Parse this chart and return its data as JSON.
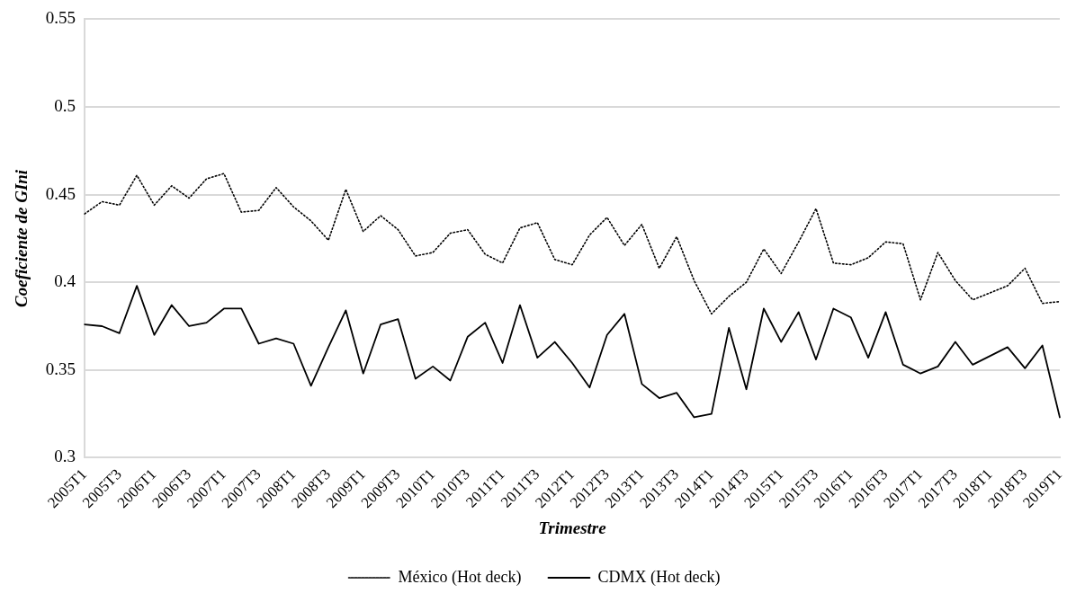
{
  "chart_data": {
    "type": "line",
    "xlabel": "Trimestre",
    "ylabel": "Coeficiente de GIni",
    "categories": [
      "2005T1",
      null,
      "2005T3",
      null,
      "2006T1",
      null,
      "2006T3",
      null,
      "2007T1",
      null,
      "2007T3",
      null,
      "2008T1",
      null,
      "2008T3",
      null,
      "2009T1",
      null,
      "2009T3",
      null,
      "2010T1",
      null,
      "2010T3",
      null,
      "2011T1",
      null,
      "2011T3",
      null,
      "2012T1",
      null,
      "2012T3",
      null,
      "2013T1",
      null,
      "2013T3",
      null,
      "2014T1",
      null,
      "2014T3",
      null,
      "2015T1",
      null,
      "2015T3",
      null,
      "2016T1",
      null,
      "2016T3",
      null,
      "2017T1",
      null,
      "2017T3",
      null,
      "2018T1",
      null,
      "2018T3",
      null,
      "2019T1"
    ],
    "series": [
      {
        "name": "México (Hot deck)",
        "color": "#000000",
        "line_style": "dotted",
        "values": [
          0.439,
          0.446,
          0.444,
          0.461,
          0.444,
          0.455,
          0.448,
          0.459,
          0.462,
          0.44,
          0.441,
          0.454,
          0.443,
          0.435,
          0.424,
          0.453,
          0.429,
          0.438,
          0.43,
          0.415,
          0.417,
          0.428,
          0.43,
          0.416,
          0.411,
          0.431,
          0.434,
          0.413,
          0.41,
          0.427,
          0.437,
          0.421,
          0.433,
          0.408,
          0.426,
          0.401,
          0.382,
          0.392,
          0.4,
          0.419,
          0.405,
          0.423,
          0.442,
          0.411,
          0.41,
          0.414,
          0.423,
          0.422,
          0.39,
          0.417,
          0.401,
          0.39,
          0.394,
          0.398,
          0.408,
          0.388,
          0.389
        ]
      },
      {
        "name": "CDMX (Hot deck)",
        "color": "#000000",
        "line_style": "solid",
        "values": [
          0.376,
          0.375,
          0.371,
          0.398,
          0.37,
          0.387,
          0.375,
          0.377,
          0.385,
          0.385,
          0.365,
          0.368,
          0.365,
          0.341,
          0.363,
          0.384,
          0.348,
          0.376,
          0.379,
          0.345,
          0.352,
          0.344,
          0.369,
          0.377,
          0.354,
          0.387,
          0.357,
          0.366,
          0.354,
          0.34,
          0.37,
          0.382,
          0.342,
          0.334,
          0.337,
          0.323,
          0.325,
          0.374,
          0.339,
          0.385,
          0.366,
          0.383,
          0.356,
          0.385,
          0.38,
          0.357,
          0.383,
          0.353,
          0.348,
          0.352,
          0.366,
          0.353,
          0.358,
          0.363,
          0.351,
          0.364,
          0.323
        ]
      }
    ],
    "ylim": [
      0.3,
      0.55
    ],
    "yticks": [
      0.3,
      0.35,
      0.4,
      0.45,
      0.5,
      0.55
    ],
    "grid": "y",
    "legend": "bottom",
    "marker": "none"
  }
}
